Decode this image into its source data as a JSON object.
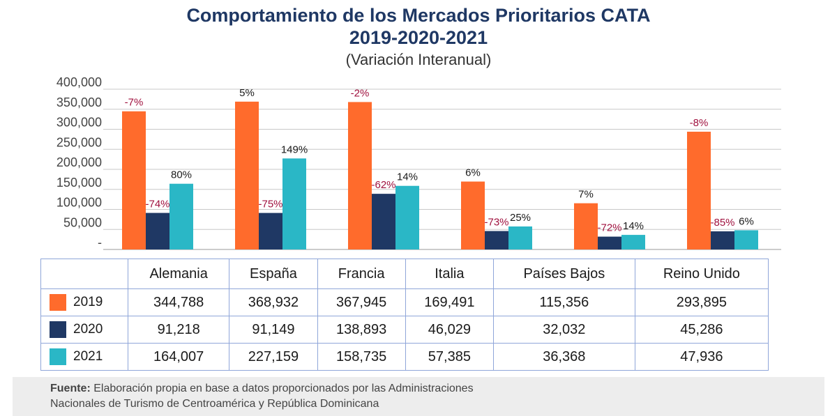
{
  "title": "Comportamiento de los Mercados Prioritarios CATA",
  "years_line": "2019-2020-2021",
  "subtitle": "(Variación Interanual)",
  "colors": {
    "2019": "#ff6b2c",
    "2020": "#1f3864",
    "2021": "#2ab7c6",
    "neg_label": "#a0123f",
    "pos_label": "#1a1a1a"
  },
  "chart_data": {
    "type": "bar",
    "categories": [
      "Alemania",
      "España",
      "Francia",
      "Italia",
      "Países Bajos",
      "Reino Unido"
    ],
    "series": [
      {
        "name": "2019",
        "values": [
          344788,
          368932,
          367945,
          169491,
          115356,
          293895
        ],
        "labels": [
          "-7%",
          "5%",
          "-2%",
          "6%",
          "7%",
          "-8%"
        ]
      },
      {
        "name": "2020",
        "values": [
          91218,
          91149,
          138893,
          46029,
          32032,
          45286
        ],
        "labels": [
          "-74%",
          "-75%",
          "-62%",
          "-73%",
          "-72%",
          "-85%"
        ]
      },
      {
        "name": "2021",
        "values": [
          164007,
          227159,
          158735,
          57385,
          36368,
          47936
        ],
        "labels": [
          "80%",
          "149%",
          "14%",
          "25%",
          "14%",
          "6%"
        ]
      }
    ],
    "yticks": [
      "-",
      "50,000",
      "100,000",
      "150,000",
      "200,000",
      "250,000",
      "300,000",
      "350,000",
      "400,000"
    ],
    "ylim": [
      0,
      400000
    ],
    "grid": true,
    "legend": "table-below"
  },
  "table": {
    "rows": [
      {
        "year": "2019",
        "values": [
          "344,788",
          "368,932",
          "367,945",
          "169,491",
          "115,356",
          "293,895"
        ]
      },
      {
        "year": "2020",
        "values": [
          "91,218",
          "91,149",
          "138,893",
          "46,029",
          "32,032",
          "45,286"
        ]
      },
      {
        "year": "2021",
        "values": [
          "164,007",
          "227,159",
          "158,735",
          "57,385",
          "36,368",
          "47,936"
        ]
      }
    ]
  },
  "footer": {
    "bold": "Fuente:",
    "line1": " Elaboración propia en base a datos proporcionados por las Administraciones",
    "line2": "Nacionales de Turismo de Centroamérica y República Dominicana"
  }
}
